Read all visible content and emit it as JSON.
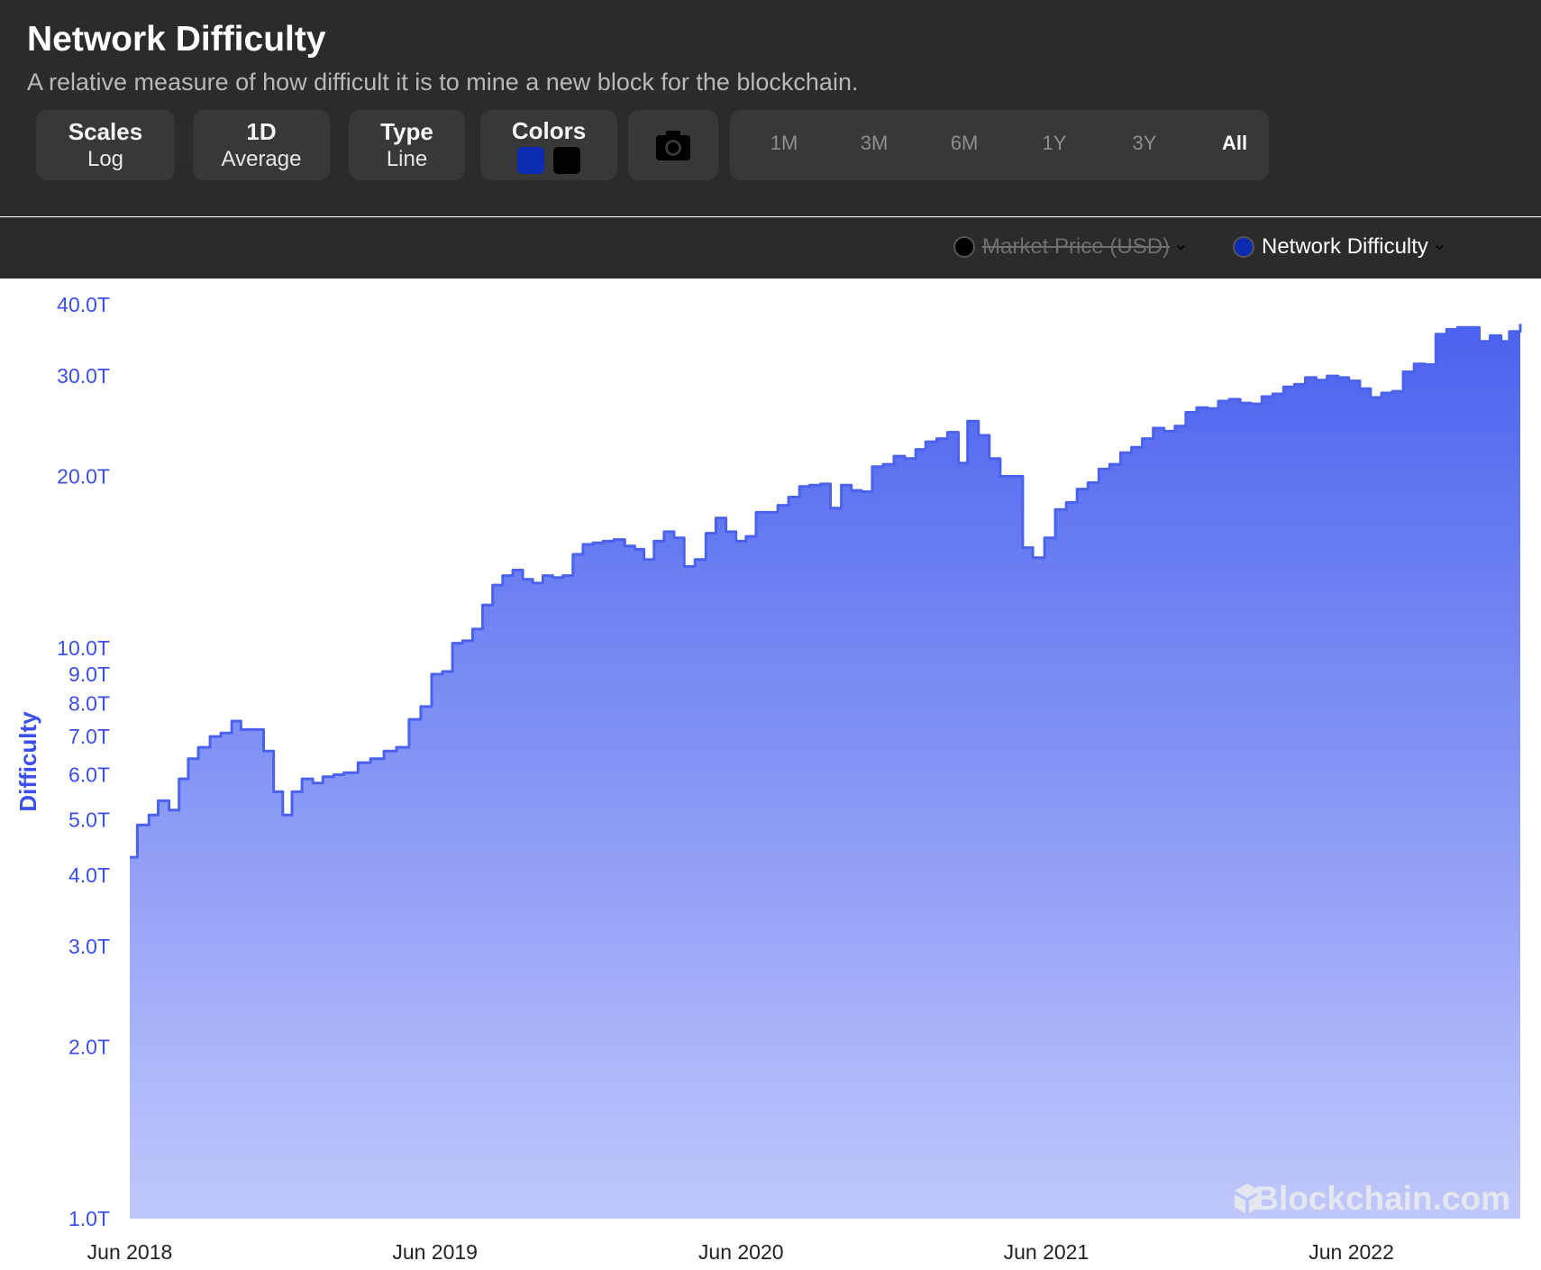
{
  "header": {
    "title": "Network Difficulty",
    "subtitle": "A relative measure of how difficult it is to mine a new block for the blockchain."
  },
  "controls": {
    "scales": {
      "label": "Scales",
      "value": "Log"
    },
    "interval": {
      "label": "1D",
      "value": "Average"
    },
    "type": {
      "label": "Type",
      "value": "Line"
    },
    "colors": {
      "label": "Colors",
      "swatch1": "#0d2bb0",
      "swatch2": "#000000"
    },
    "camera_icon": "camera-icon"
  },
  "ranges": [
    "1M",
    "3M",
    "6M",
    "1Y",
    "3Y",
    "All"
  ],
  "active_range": "All",
  "legend": [
    {
      "label": "Market Price (USD)",
      "color": "#000000",
      "disabled": true
    },
    {
      "label": "Network Difficulty",
      "color": "#0d2bb0",
      "disabled": false
    }
  ],
  "watermark": "Blockchain.com",
  "chart_data": {
    "type": "area",
    "title": "Network Difficulty",
    "ylabel": "Difficulty",
    "yscale": "log",
    "ylim": [
      1.0,
      40.0
    ],
    "yticks": [
      {
        "value": 1.0,
        "label": "1.0T"
      },
      {
        "value": 2.0,
        "label": "2.0T"
      },
      {
        "value": 3.0,
        "label": "3.0T"
      },
      {
        "value": 4.0,
        "label": "4.0T"
      },
      {
        "value": 5.0,
        "label": "5.0T"
      },
      {
        "value": 6.0,
        "label": "6.0T"
      },
      {
        "value": 7.0,
        "label": "7.0T"
      },
      {
        "value": 8.0,
        "label": "8.0T"
      },
      {
        "value": 9.0,
        "label": "9.0T"
      },
      {
        "value": 10.0,
        "label": "10.0T"
      },
      {
        "value": 20.0,
        "label": "20.0T"
      },
      {
        "value": 30.0,
        "label": "30.0T"
      },
      {
        "value": 40.0,
        "label": "40.0T"
      }
    ],
    "xlim": [
      "2018-06-01",
      "2022-12-20"
    ],
    "xticks": [
      {
        "date": "2018-06-01",
        "label": "Jun 2018"
      },
      {
        "date": "2019-06-01",
        "label": "Jun 2019"
      },
      {
        "date": "2020-06-01",
        "label": "Jun 2020"
      },
      {
        "date": "2021-06-01",
        "label": "Jun 2021"
      },
      {
        "date": "2022-06-01",
        "label": "Jun 2022"
      }
    ],
    "series": [
      {
        "name": "Network Difficulty",
        "unit": "T",
        "color": "#4a62ee",
        "points": [
          [
            "2018-06-01",
            4.3
          ],
          [
            "2018-06-10",
            4.9
          ],
          [
            "2018-06-24",
            5.1
          ],
          [
            "2018-07-05",
            5.4
          ],
          [
            "2018-07-18",
            5.2
          ],
          [
            "2018-07-30",
            5.9
          ],
          [
            "2018-08-10",
            6.4
          ],
          [
            "2018-08-22",
            6.7
          ],
          [
            "2018-09-05",
            7.0
          ],
          [
            "2018-09-18",
            7.1
          ],
          [
            "2018-10-01",
            7.45
          ],
          [
            "2018-10-12",
            7.2
          ],
          [
            "2018-10-26",
            7.2
          ],
          [
            "2018-11-08",
            6.6
          ],
          [
            "2018-11-20",
            5.6
          ],
          [
            "2018-12-01",
            5.1
          ],
          [
            "2018-12-12",
            5.6
          ],
          [
            "2018-12-24",
            5.9
          ],
          [
            "2019-01-06",
            5.8
          ],
          [
            "2019-01-18",
            5.95
          ],
          [
            "2019-01-31",
            6.0
          ],
          [
            "2019-02-12",
            6.05
          ],
          [
            "2019-03-01",
            6.3
          ],
          [
            "2019-03-16",
            6.4
          ],
          [
            "2019-04-01",
            6.6
          ],
          [
            "2019-04-16",
            6.7
          ],
          [
            "2019-05-01",
            7.5
          ],
          [
            "2019-05-15",
            7.9
          ],
          [
            "2019-05-28",
            9.0
          ],
          [
            "2019-06-10",
            9.1
          ],
          [
            "2019-06-22",
            10.2
          ],
          [
            "2019-07-04",
            10.3
          ],
          [
            "2019-07-16",
            10.8
          ],
          [
            "2019-07-28",
            11.9
          ],
          [
            "2019-08-09",
            12.9
          ],
          [
            "2019-08-21",
            13.4
          ],
          [
            "2019-09-02",
            13.7
          ],
          [
            "2019-09-14",
            13.2
          ],
          [
            "2019-09-26",
            13.0
          ],
          [
            "2019-10-08",
            13.4
          ],
          [
            "2019-10-20",
            13.3
          ],
          [
            "2019-11-01",
            13.4
          ],
          [
            "2019-11-13",
            14.6
          ],
          [
            "2019-11-25",
            15.2
          ],
          [
            "2019-12-07",
            15.3
          ],
          [
            "2019-12-19",
            15.4
          ],
          [
            "2020-01-01",
            15.5
          ],
          [
            "2020-01-14",
            15.1
          ],
          [
            "2020-01-26",
            14.9
          ],
          [
            "2020-02-06",
            14.3
          ],
          [
            "2020-02-18",
            15.4
          ],
          [
            "2020-03-01",
            16.0
          ],
          [
            "2020-03-13",
            15.6
          ],
          [
            "2020-03-25",
            13.9
          ],
          [
            "2020-04-07",
            14.3
          ],
          [
            "2020-04-20",
            15.9
          ],
          [
            "2020-05-02",
            16.9
          ],
          [
            "2020-05-14",
            16.0
          ],
          [
            "2020-05-26",
            15.4
          ],
          [
            "2020-06-07",
            15.7
          ],
          [
            "2020-06-19",
            17.3
          ],
          [
            "2020-07-02",
            17.3
          ],
          [
            "2020-07-15",
            17.8
          ],
          [
            "2020-07-28",
            18.4
          ],
          [
            "2020-08-10",
            19.2
          ],
          [
            "2020-08-22",
            19.3
          ],
          [
            "2020-09-04",
            19.4
          ],
          [
            "2020-09-16",
            17.6
          ],
          [
            "2020-09-29",
            19.3
          ],
          [
            "2020-10-11",
            18.9
          ],
          [
            "2020-10-23",
            18.8
          ],
          [
            "2020-11-05",
            20.8
          ],
          [
            "2020-11-18",
            21.0
          ],
          [
            "2020-12-01",
            21.7
          ],
          [
            "2020-12-14",
            21.5
          ],
          [
            "2020-12-27",
            22.3
          ],
          [
            "2021-01-08",
            23.0
          ],
          [
            "2021-01-21",
            23.3
          ],
          [
            "2021-02-03",
            23.9
          ],
          [
            "2021-02-16",
            21.1
          ],
          [
            "2021-02-27",
            25.0
          ],
          [
            "2021-03-12",
            23.6
          ],
          [
            "2021-03-25",
            21.5
          ],
          [
            "2021-04-07",
            20.0
          ],
          [
            "2021-04-22",
            20.0
          ],
          [
            "2021-05-04",
            15.0
          ],
          [
            "2021-05-16",
            14.4
          ],
          [
            "2021-05-30",
            15.6
          ],
          [
            "2021-06-12",
            17.5
          ],
          [
            "2021-06-25",
            18.0
          ],
          [
            "2021-07-08",
            19.0
          ],
          [
            "2021-07-21",
            19.5
          ],
          [
            "2021-08-03",
            20.6
          ],
          [
            "2021-08-16",
            21.0
          ],
          [
            "2021-08-29",
            22.0
          ],
          [
            "2021-09-11",
            22.5
          ],
          [
            "2021-09-24",
            23.3
          ],
          [
            "2021-10-07",
            24.3
          ],
          [
            "2021-10-20",
            24.0
          ],
          [
            "2021-11-02",
            24.5
          ],
          [
            "2021-11-15",
            25.9
          ],
          [
            "2021-11-28",
            26.4
          ],
          [
            "2021-12-11",
            26.3
          ],
          [
            "2021-12-24",
            27.1
          ],
          [
            "2022-01-06",
            27.3
          ],
          [
            "2022-01-19",
            26.9
          ],
          [
            "2022-02-01",
            26.8
          ],
          [
            "2022-02-14",
            27.6
          ],
          [
            "2022-02-27",
            27.9
          ],
          [
            "2022-03-12",
            28.7
          ],
          [
            "2022-03-25",
            29.0
          ],
          [
            "2022-04-07",
            29.8
          ],
          [
            "2022-04-20",
            29.5
          ],
          [
            "2022-05-03",
            30.0
          ],
          [
            "2022-05-16",
            29.8
          ],
          [
            "2022-05-29",
            29.4
          ],
          [
            "2022-06-11",
            28.5
          ],
          [
            "2022-06-24",
            27.5
          ],
          [
            "2022-07-07",
            28.0
          ],
          [
            "2022-07-20",
            28.2
          ],
          [
            "2022-08-02",
            30.5
          ],
          [
            "2022-08-15",
            31.5
          ],
          [
            "2022-08-28",
            31.4
          ],
          [
            "2022-09-10",
            35.5
          ],
          [
            "2022-09-23",
            36.2
          ],
          [
            "2022-10-06",
            36.5
          ],
          [
            "2022-10-19",
            36.5
          ],
          [
            "2022-11-01",
            34.5
          ],
          [
            "2022-11-14",
            35.3
          ],
          [
            "2022-11-27",
            34.5
          ],
          [
            "2022-12-07",
            35.9
          ],
          [
            "2022-12-20",
            37.0
          ]
        ]
      }
    ]
  }
}
